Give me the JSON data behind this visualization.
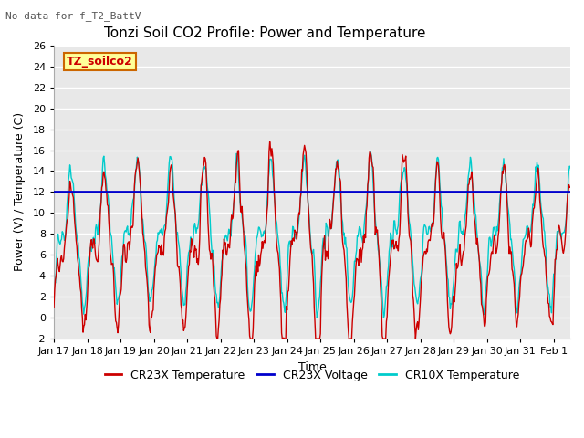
{
  "title": "Tonzi Soil CO2 Profile: Power and Temperature",
  "subtitle": "No data for f_T2_BattV",
  "xlabel": "Time",
  "ylabel": "Power (V) / Temperature (C)",
  "ylim": [
    -2,
    26
  ],
  "yticks": [
    -2,
    0,
    2,
    4,
    6,
    8,
    10,
    12,
    14,
    16,
    18,
    20,
    22,
    24,
    26
  ],
  "xtick_labels": [
    "Jan 17",
    "Jan 18",
    "Jan 19",
    "Jan 20",
    "Jan 21",
    "Jan 22",
    "Jan 23",
    "Jan 24",
    "Jan 25",
    "Jan 26",
    "Jan 27",
    "Jan 28",
    "Jan 29",
    "Jan 30",
    "Jan 31",
    "Feb 1"
  ],
  "voltage_value": 12.0,
  "cr23x_color": "#cc0000",
  "cr10x_color": "#00cccc",
  "voltage_color": "#0000cc",
  "legend_box_color": "#ffff99",
  "legend_box_edge": "#cc6600",
  "legend_label_color": "#cc0000",
  "grid_color": "#d8d8d8",
  "bg_color": "#e8e8e8",
  "annotation_color": "#555555",
  "title_fontsize": 11,
  "label_fontsize": 9,
  "tick_fontsize": 8,
  "legend_fontsize": 9,
  "line_width": 1.0
}
